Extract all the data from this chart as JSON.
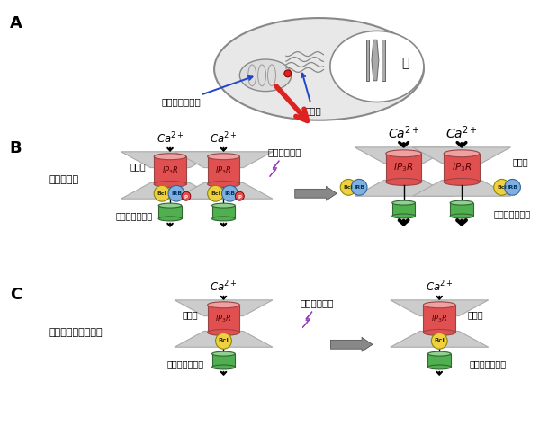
{
  "bg_color": "#ffffff",
  "label_A": "A",
  "label_B": "B",
  "label_C": "C",
  "nucleus_text": "核",
  "mitochondria_label": "ミトコンドリア",
  "ER_label": "小胞体",
  "normal_cell_label": "正常な細胞",
  "stress_label": "ストレス刺激",
  "deficit_cell_label": "アービット欠損細胞",
  "Bcl_text": "Bcl",
  "IRB_text": "IRB",
  "p_text": "p",
  "er_color": "#cccccc",
  "cylinder_red": "#e05050",
  "cylinder_red_light": "#f0a0a0",
  "cylinder_green": "#50b050",
  "cylinder_green_light": "#90d090",
  "bcl_color": "#f0d040",
  "irb_color": "#80b0e0",
  "p_color": "#e05050",
  "red_arrow_color": "#dd2222",
  "blue_line_color": "#2244cc"
}
